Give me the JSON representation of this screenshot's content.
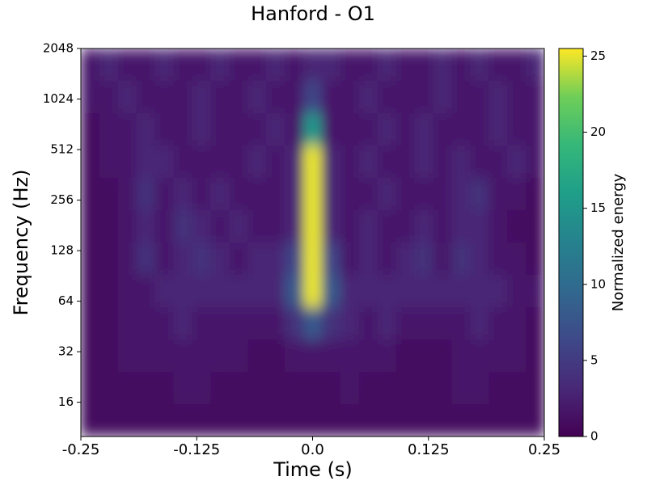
{
  "chart_data": {
    "type": "spectrogram",
    "title": "Hanford - O1",
    "xlabel": "Time (s)",
    "ylabel": "Frequency (Hz)",
    "colorbar_label": "Normalized energy",
    "xlim": [
      -0.25,
      0.25
    ],
    "xticks": [
      -0.25,
      -0.125,
      {
        "value": 0,
        "label": "0.0"
      },
      0.125,
      0.25
    ],
    "ylim": [
      10,
      2048
    ],
    "yscale": "log",
    "yticks": [
      16,
      32,
      64,
      128,
      256,
      512,
      1024,
      2048
    ],
    "clim": [
      0,
      25.5
    ],
    "cticks": [
      0,
      5,
      10,
      15,
      20,
      25
    ],
    "colormap": "viridis",
    "z": [
      [
        2,
        3,
        2,
        2,
        3,
        2,
        2,
        3,
        2,
        2,
        3,
        2,
        3,
        3,
        2,
        2,
        3,
        2,
        2,
        3,
        2,
        3,
        2,
        2,
        3
      ],
      [
        2,
        2,
        3,
        2,
        2,
        2,
        3,
        2,
        2,
        3,
        2,
        2,
        6,
        2,
        2,
        3,
        2,
        2,
        2,
        3,
        2,
        2,
        3,
        2,
        2
      ],
      [
        1,
        2,
        2,
        3,
        2,
        2,
        3,
        2,
        2,
        2,
        3,
        2,
        15,
        2,
        2,
        2,
        3,
        2,
        3,
        2,
        2,
        2,
        3,
        2,
        2
      ],
      [
        1,
        2,
        2,
        3,
        3,
        2,
        2,
        2,
        2,
        3,
        2,
        3,
        25,
        3,
        2,
        3,
        2,
        2,
        3,
        2,
        3,
        2,
        2,
        3,
        2
      ],
      [
        1,
        1,
        2,
        4,
        2,
        3,
        2,
        3,
        2,
        2,
        2,
        3,
        25,
        3,
        2,
        2,
        3,
        2,
        2,
        2,
        3,
        4,
        2,
        2,
        1
      ],
      [
        1,
        1,
        2,
        3,
        2,
        4,
        3,
        2,
        3,
        2,
        2,
        3,
        25,
        3,
        2,
        3,
        2,
        2,
        3,
        2,
        3,
        3,
        2,
        1,
        1
      ],
      [
        1,
        1,
        2,
        4,
        2,
        3,
        4,
        3,
        2,
        3,
        3,
        6,
        25,
        6,
        2,
        3,
        2,
        3,
        4,
        2,
        4,
        3,
        2,
        2,
        1
      ],
      [
        1,
        1,
        2,
        2,
        3,
        3,
        3,
        3,
        3,
        3,
        3,
        8,
        25,
        8,
        3,
        3,
        3,
        3,
        3,
        3,
        3,
        3,
        3,
        2,
        2
      ],
      [
        1,
        1,
        2,
        2,
        2,
        3,
        2,
        2,
        2,
        2,
        2,
        4,
        8,
        4,
        3,
        2,
        3,
        2,
        2,
        2,
        2,
        3,
        2,
        2,
        1
      ],
      [
        1,
        1,
        2,
        2,
        2,
        2,
        2,
        2,
        2,
        1,
        1,
        2,
        2,
        2,
        2,
        2,
        2,
        1,
        1,
        1,
        2,
        2,
        2,
        2,
        1
      ],
      [
        1,
        1,
        1,
        1,
        1,
        2,
        2,
        1,
        1,
        1,
        1,
        1,
        1,
        1,
        2,
        1,
        1,
        1,
        1,
        1,
        2,
        2,
        1,
        1,
        1
      ],
      [
        1,
        1,
        1,
        1,
        1,
        1,
        1,
        1,
        1,
        1,
        1,
        1,
        1,
        1,
        1,
        1,
        1,
        1,
        1,
        1,
        1,
        1,
        1,
        1,
        1
      ]
    ]
  }
}
